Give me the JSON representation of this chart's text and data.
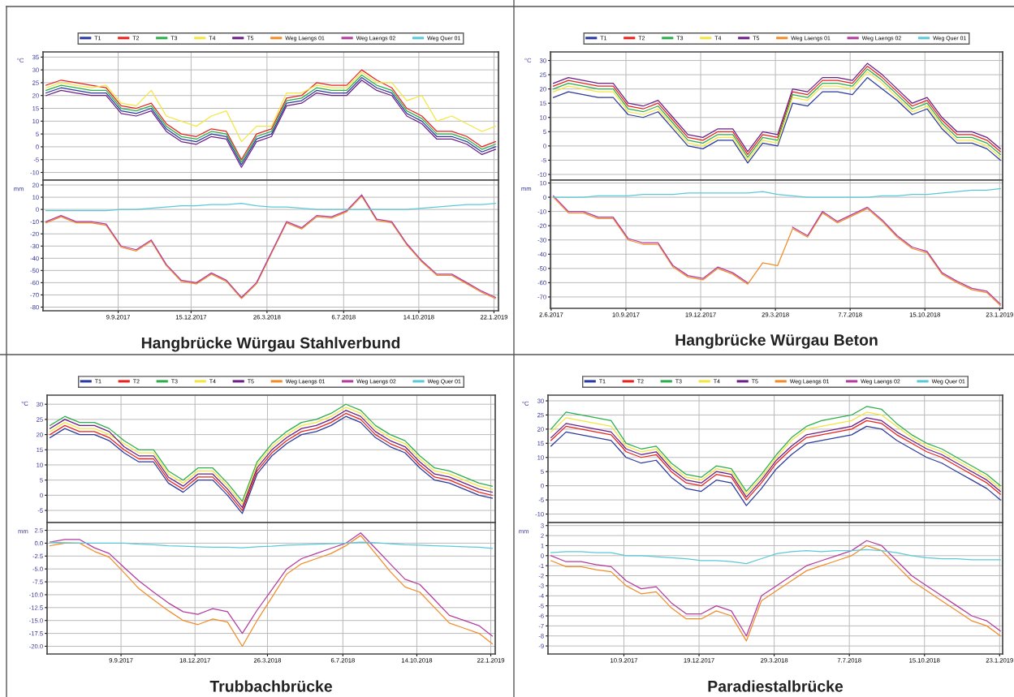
{
  "chart_data": [
    {
      "type": "line",
      "x": [
        "2017-06-05",
        "2017-06-25",
        "2017-07-15",
        "2017-08-04",
        "2017-08-24",
        "2017-09-13",
        "2017-10-03",
        "2017-10-23",
        "2017-11-12",
        "2017-12-02",
        "2017-12-22",
        "2018-01-11",
        "2018-01-31",
        "2018-02-20",
        "2018-03-12",
        "2018-04-01",
        "2018-04-21",
        "2018-05-11",
        "2018-05-31",
        "2018-06-20",
        "2018-07-10",
        "2018-07-30",
        "2018-08-19",
        "2018-09-08",
        "2018-09-28",
        "2018-10-18",
        "2018-11-07",
        "2018-11-27",
        "2018-12-17",
        "2019-01-06",
        "2019-01-24"
      ],
      "xlim": [
        "2017-06-01",
        "2019-01-28"
      ],
      "xticks": [
        {
          "value": "2017-09-09",
          "label": null
        },
        {
          "value": "2017-12-15",
          "label": null
        },
        {
          "value": "2018-03-26",
          "label": null
        },
        {
          "value": "2018-07-06",
          "label": null
        },
        {
          "value": "2018-10-14",
          "label": null
        },
        {
          "value": "2019-01-22",
          "label": null
        }
      ],
      "ylim": [
        -13,
        37
      ],
      "yticks": [
        -10,
        -5,
        0,
        5,
        10,
        15,
        20,
        25,
        30,
        35
      ],
      "ylabel": "°C",
      "grid": true,
      "tick_labels": "y",
      "legend": "top",
      "series": [
        {
          "name": "T1",
          "color": "#2b3a9e",
          "values": [
            21,
            23,
            22,
            21,
            21,
            14,
            13,
            15,
            7,
            3,
            2,
            5,
            4,
            -7,
            3,
            5,
            17,
            18,
            22,
            21,
            21,
            27,
            23,
            21,
            13,
            10,
            4,
            4,
            2,
            -2,
            0
          ]
        },
        {
          "name": "T2",
          "color": "#e8231e",
          "values": [
            24,
            26,
            25,
            24,
            23,
            16,
            15,
            17,
            9,
            5,
            4,
            7,
            6,
            -5,
            5,
            7,
            19,
            20,
            25,
            24,
            24,
            30,
            26,
            23,
            15,
            12,
            6,
            6,
            4,
            0,
            2
          ]
        },
        {
          "name": "T3",
          "color": "#2cae4a",
          "values": [
            22,
            24,
            23,
            22,
            22,
            15,
            14,
            16,
            8,
            4,
            3,
            6,
            5,
            -6,
            4,
            6,
            18,
            19,
            23,
            22,
            22,
            28,
            24,
            22,
            14,
            11,
            5,
            5,
            3,
            -1,
            1
          ]
        },
        {
          "name": "T4",
          "color": "#f3e640",
          "values": [
            23,
            25,
            24,
            23,
            24,
            17,
            16,
            22,
            12,
            10,
            8,
            12,
            14,
            2,
            8,
            8,
            21,
            21,
            24,
            23,
            23,
            29,
            25,
            25,
            18,
            20,
            10,
            12,
            9,
            6,
            8
          ]
        },
        {
          "name": "T5",
          "color": "#6b1f87",
          "values": [
            20,
            22,
            21,
            20,
            20,
            13,
            12,
            14,
            6,
            2,
            1,
            4,
            3,
            -8,
            2,
            4,
            16,
            17,
            21,
            20,
            20,
            26,
            22,
            20,
            12,
            9,
            3,
            3,
            1,
            -3,
            -1
          ]
        }
      ]
    },
    {
      "type": "line",
      "title": "Hangbrücke Würgau Stahlverbund",
      "x": [
        "2017-06-05",
        "2017-06-25",
        "2017-07-15",
        "2017-08-04",
        "2017-08-24",
        "2017-09-13",
        "2017-10-03",
        "2017-10-23",
        "2017-11-12",
        "2017-12-02",
        "2017-12-22",
        "2018-01-11",
        "2018-01-31",
        "2018-02-20",
        "2018-03-12",
        "2018-04-01",
        "2018-04-21",
        "2018-05-11",
        "2018-05-31",
        "2018-06-20",
        "2018-07-10",
        "2018-07-30",
        "2018-08-19",
        "2018-09-08",
        "2018-09-28",
        "2018-10-18",
        "2018-11-07",
        "2018-11-27",
        "2018-12-17",
        "2019-01-06",
        "2019-01-24"
      ],
      "xlim": [
        "2017-06-01",
        "2019-01-28"
      ],
      "xticks": [
        {
          "value": "2017-09-09",
          "label": "9.9.2017"
        },
        {
          "value": "2017-12-15",
          "label": "15.12.2017"
        },
        {
          "value": "2018-03-26",
          "label": "26.3.2018"
        },
        {
          "value": "2018-07-06",
          "label": "6.7.2018"
        },
        {
          "value": "2018-10-14",
          "label": "14.10.2018"
        },
        {
          "value": "2019-01-22",
          "label": "22.1.2019"
        }
      ],
      "ylim": [
        -83,
        24
      ],
      "yticks": [
        -80,
        -70,
        -60,
        -50,
        -40,
        -30,
        -20,
        -10,
        0,
        10,
        20
      ],
      "ylabel": "mm",
      "grid": true,
      "legend": "top",
      "series": [
        {
          "name": "Weg Laengs 01",
          "color": "#f28c28",
          "values": [
            -11,
            -6,
            -11,
            -11,
            -13,
            -31,
            -34,
            -26,
            -46,
            -59,
            -61,
            -53,
            -59,
            -73,
            -61,
            -36,
            -11,
            -16,
            -6,
            -7,
            -2,
            11,
            -9,
            -11,
            -29,
            -43,
            -54,
            -54,
            -61,
            -68,
            -73
          ]
        },
        {
          "name": "Weg Laengs 02",
          "color": "#b43c9f",
          "values": [
            -10,
            -5,
            -10,
            -10,
            -12,
            -30,
            -33,
            -25,
            -45,
            -58,
            -60,
            -52,
            -58,
            -72,
            -60,
            -35,
            -10,
            -15,
            -5,
            -6,
            -1,
            12,
            -8,
            -10,
            -28,
            -42,
            -53,
            -53,
            -60,
            -67,
            -72
          ]
        },
        {
          "name": "Weg Quer 01",
          "color": "#5cc9d9",
          "values": [
            -1,
            -1,
            -1,
            -1,
            -1,
            0,
            0,
            1,
            2,
            3,
            3,
            4,
            4,
            5,
            3,
            2,
            2,
            1,
            0,
            0,
            0,
            0,
            0,
            0,
            0,
            1,
            2,
            3,
            4,
            4,
            5
          ]
        }
      ]
    },
    {
      "type": "line",
      "x": [
        "2017-06-05",
        "2017-06-25",
        "2017-07-15",
        "2017-08-04",
        "2017-08-24",
        "2017-09-13",
        "2017-10-03",
        "2017-10-23",
        "2017-11-12",
        "2017-12-02",
        "2017-12-22",
        "2018-01-11",
        "2018-01-31",
        "2018-02-20",
        "2018-03-12",
        "2018-04-01",
        "2018-04-21",
        "2018-05-11",
        "2018-05-31",
        "2018-06-20",
        "2018-07-10",
        "2018-07-30",
        "2018-08-19",
        "2018-09-08",
        "2018-09-28",
        "2018-10-18",
        "2018-11-07",
        "2018-11-27",
        "2018-12-17",
        "2019-01-06",
        "2019-01-24"
      ],
      "xlim": [
        "2017-06-01",
        "2019-01-27"
      ],
      "xticks": [
        {
          "value": "2017-06-02",
          "label": null
        },
        {
          "value": "2017-09-10",
          "label": null
        },
        {
          "value": "2017-12-19",
          "label": null
        },
        {
          "value": "2018-03-29",
          "label": null
        },
        {
          "value": "2018-07-07",
          "label": null
        },
        {
          "value": "2018-10-15",
          "label": null
        },
        {
          "value": "2019-01-23",
          "label": null
        }
      ],
      "ylim": [
        -12,
        33
      ],
      "yticks": [
        -10,
        -5,
        0,
        5,
        10,
        15,
        20,
        25,
        30
      ],
      "ylabel": "°C",
      "grid": true,
      "tick_labels": "y",
      "legend": "top",
      "series": [
        {
          "name": "T1",
          "color": "#2b3a9e",
          "values": [
            17,
            19,
            18,
            17,
            17,
            11,
            10,
            12,
            6,
            0,
            -1,
            2,
            2,
            -6,
            1,
            0,
            15,
            14,
            19,
            19,
            18,
            24,
            20,
            16,
            11,
            13,
            6,
            1,
            1,
            -1,
            -5
          ]
        },
        {
          "name": "T2",
          "color": "#e8231e",
          "values": [
            21,
            23,
            22,
            21,
            21,
            14,
            13,
            15,
            9,
            3,
            2,
            5,
            5,
            -3,
            4,
            3,
            19,
            18,
            23,
            23,
            22,
            28,
            24,
            19,
            14,
            16,
            9,
            4,
            4,
            2,
            -2
          ]
        },
        {
          "name": "T3",
          "color": "#2cae4a",
          "values": [
            20,
            22,
            21,
            20,
            20,
            13,
            12,
            14,
            8,
            2,
            1,
            4,
            4,
            -4,
            3,
            2,
            18,
            17,
            22,
            22,
            21,
            27,
            23,
            18,
            13,
            15,
            8,
            3,
            3,
            1,
            -3
          ]
        },
        {
          "name": "T4",
          "color": "#f3e640",
          "values": [
            19,
            21,
            20,
            19,
            19,
            12,
            11,
            13,
            7,
            1,
            0,
            3,
            3,
            -5,
            2,
            1,
            17,
            16,
            21,
            21,
            20,
            26,
            22,
            17,
            12,
            14,
            7,
            2,
            2,
            0,
            -4
          ]
        },
        {
          "name": "T5",
          "color": "#6b1f87",
          "values": [
            22,
            24,
            23,
            22,
            22,
            15,
            14,
            16,
            10,
            4,
            3,
            6,
            6,
            -2,
            5,
            4,
            20,
            19,
            24,
            24,
            23,
            29,
            25,
            20,
            15,
            17,
            10,
            5,
            5,
            3,
            -1
          ]
        }
      ]
    },
    {
      "type": "line",
      "title": "Hangbrücke Würgau Beton",
      "x": [
        "2017-06-05",
        "2017-06-25",
        "2017-07-15",
        "2017-08-04",
        "2017-08-24",
        "2017-09-13",
        "2017-10-03",
        "2017-10-23",
        "2017-11-12",
        "2017-12-02",
        "2017-12-22",
        "2018-01-11",
        "2018-01-31",
        "2018-02-20",
        "2018-03-12",
        "2018-04-01",
        "2018-04-21",
        "2018-05-11",
        "2018-05-31",
        "2018-06-20",
        "2018-07-10",
        "2018-07-30",
        "2018-08-19",
        "2018-09-08",
        "2018-09-28",
        "2018-10-18",
        "2018-11-07",
        "2018-11-27",
        "2018-12-17",
        "2019-01-06",
        "2019-01-24"
      ],
      "xlim": [
        "2017-06-01",
        "2019-01-27"
      ],
      "xticks": [
        {
          "value": "2017-06-02",
          "label": "2.6.2017"
        },
        {
          "value": "2017-09-10",
          "label": "10.9.2017"
        },
        {
          "value": "2017-12-19",
          "label": "19.12.2017"
        },
        {
          "value": "2018-03-29",
          "label": "29.3.2018"
        },
        {
          "value": "2018-07-07",
          "label": "7.7.2018"
        },
        {
          "value": "2018-10-15",
          "label": "15.10.2018"
        },
        {
          "value": "2019-01-23",
          "label": "23.1.2019"
        }
      ],
      "ylim": [
        -78,
        12
      ],
      "yticks": [
        -70,
        -60,
        -50,
        -40,
        -30,
        -20,
        -10,
        0,
        10
      ],
      "ylabel": "mm",
      "grid": true,
      "legend": "top",
      "series": [
        {
          "name": "Weg Laengs 01",
          "color": "#f28c28",
          "values": [
            0,
            -11,
            -11,
            -15,
            -15,
            -30,
            -33,
            -33,
            -49,
            -56,
            -58,
            -50,
            -54,
            -61,
            -46,
            -48,
            -22,
            -28,
            -11,
            -18,
            -13,
            -8,
            -17,
            -28,
            -36,
            -39,
            -54,
            -60,
            -65,
            -67,
            -76
          ]
        },
        {
          "name": "Weg Laengs 02",
          "color": "#b43c9f",
          "values": [
            1,
            -10,
            -10,
            -14,
            -14,
            -29,
            -32,
            -32,
            -48,
            -55,
            -57,
            -49,
            -53,
            -60,
            null,
            null,
            -21,
            -27,
            -10,
            -17,
            -12,
            -7,
            -16,
            -27,
            -35,
            -38,
            -53,
            -59,
            -64,
            -66,
            -75
          ]
        },
        {
          "name": "Weg Quer 01",
          "color": "#5cc9d9",
          "values": [
            0,
            0,
            0,
            1,
            1,
            1,
            2,
            2,
            2,
            3,
            3,
            3,
            3,
            3,
            4,
            2,
            1,
            0,
            0,
            0,
            0,
            0,
            1,
            1,
            2,
            2,
            3,
            4,
            5,
            5,
            6
          ]
        }
      ]
    },
    {
      "type": "line",
      "x": [
        "2017-06-05",
        "2017-06-25",
        "2017-07-15",
        "2017-08-04",
        "2017-08-24",
        "2017-09-13",
        "2017-10-03",
        "2017-10-23",
        "2017-11-12",
        "2017-12-02",
        "2017-12-22",
        "2018-01-11",
        "2018-01-31",
        "2018-02-20",
        "2018-03-12",
        "2018-04-01",
        "2018-04-21",
        "2018-05-11",
        "2018-05-31",
        "2018-06-20",
        "2018-07-10",
        "2018-07-30",
        "2018-08-19",
        "2018-09-08",
        "2018-09-28",
        "2018-10-18",
        "2018-11-07",
        "2018-11-27",
        "2018-12-17",
        "2019-01-06",
        "2019-01-24"
      ],
      "xlim": [
        "2017-06-01",
        "2019-01-28"
      ],
      "xticks": [
        {
          "value": "2017-09-09",
          "label": null
        },
        {
          "value": "2017-12-18",
          "label": null
        },
        {
          "value": "2018-03-26",
          "label": null
        },
        {
          "value": "2018-07-06",
          "label": null
        },
        {
          "value": "2018-10-14",
          "label": null
        },
        {
          "value": "2019-01-22",
          "label": null
        }
      ],
      "ylim": [
        -9,
        33
      ],
      "yticks": [
        -5,
        0,
        5,
        10,
        15,
        20,
        25,
        30
      ],
      "ylabel": "°C",
      "grid": true,
      "tick_labels": "y",
      "legend": "top",
      "series": [
        {
          "name": "T1",
          "color": "#2b3a9e",
          "values": [
            19,
            22,
            20,
            20,
            18,
            14,
            11,
            11,
            4,
            1,
            5,
            5,
            0,
            -6,
            7,
            13,
            17,
            20,
            21,
            23,
            26,
            24,
            19,
            16,
            14,
            9,
            5,
            4,
            2,
            0,
            -1
          ]
        },
        {
          "name": "T2",
          "color": "#e8231e",
          "values": [
            20,
            23,
            21,
            21,
            19,
            15,
            12,
            12,
            5,
            2,
            6,
            6,
            1,
            -5,
            8,
            14,
            18,
            21,
            22,
            24,
            27,
            25,
            20,
            17,
            15,
            10,
            6,
            5,
            3,
            1,
            0
          ]
        },
        {
          "name": "T3",
          "color": "#2cae4a",
          "values": [
            23,
            26,
            24,
            24,
            22,
            18,
            15,
            15,
            8,
            5,
            9,
            9,
            4,
            -2,
            11,
            17,
            21,
            24,
            25,
            27,
            30,
            28,
            23,
            20,
            18,
            13,
            9,
            8,
            6,
            4,
            3
          ]
        },
        {
          "name": "T4",
          "color": "#f3e640",
          "values": [
            21,
            24,
            22,
            22,
            20,
            17,
            14,
            14,
            7,
            4,
            8,
            8,
            3,
            -3,
            10,
            16,
            20,
            23,
            24,
            26,
            29,
            27,
            22,
            19,
            17,
            12,
            8,
            7,
            5,
            3,
            2
          ]
        },
        {
          "name": "T5",
          "color": "#6b1f87",
          "values": [
            22,
            25,
            23,
            23,
            21,
            16,
            13,
            13,
            6,
            3,
            7,
            7,
            2,
            -4,
            9,
            15,
            19,
            22,
            23,
            25,
            28,
            26,
            21,
            18,
            16,
            11,
            7,
            6,
            4,
            2,
            1
          ]
        }
      ]
    },
    {
      "type": "line",
      "title": "Trubbachbrücke",
      "x": [
        "2017-06-05",
        "2017-06-25",
        "2017-07-15",
        "2017-08-04",
        "2017-08-24",
        "2017-09-13",
        "2017-10-03",
        "2017-10-23",
        "2017-11-12",
        "2017-12-02",
        "2017-12-22",
        "2018-01-11",
        "2018-01-31",
        "2018-02-20",
        "2018-03-12",
        "2018-04-01",
        "2018-04-21",
        "2018-05-11",
        "2018-05-31",
        "2018-06-20",
        "2018-07-10",
        "2018-07-30",
        "2018-08-19",
        "2018-09-08",
        "2018-09-28",
        "2018-10-18",
        "2018-11-07",
        "2018-11-27",
        "2018-12-17",
        "2019-01-06",
        "2019-01-24"
      ],
      "xlim": [
        "2017-06-01",
        "2019-01-28"
      ],
      "xticks": [
        {
          "value": "2017-09-09",
          "label": "9.9.2017"
        },
        {
          "value": "2017-12-18",
          "label": "18.12.2017"
        },
        {
          "value": "2018-03-26",
          "label": "26.3.2018"
        },
        {
          "value": "2018-07-06",
          "label": "6.7.2018"
        },
        {
          "value": "2018-10-14",
          "label": "14.10.2018"
        },
        {
          "value": "2019-01-22",
          "label": "22.1.2019"
        }
      ],
      "ylim": [
        -21.5,
        4
      ],
      "yticks": [
        {
          "value": -20,
          "label": "-20.0"
        },
        {
          "value": -17.5,
          "label": "-17.5"
        },
        {
          "value": -15,
          "label": "-15.0"
        },
        {
          "value": -12.5,
          "label": "-12.5"
        },
        {
          "value": -10,
          "label": "-10.0"
        },
        {
          "value": -7.5,
          "label": "-7.5"
        },
        {
          "value": -5,
          "label": "-5.0"
        },
        {
          "value": -2.5,
          "label": "-2.5"
        },
        {
          "value": 0,
          "label": "0.0"
        },
        {
          "value": 2.5,
          "label": "2.5"
        }
      ],
      "ylabel": "mm",
      "grid": true,
      "legend": "top",
      "series": [
        {
          "name": "Weg Laengs 01",
          "color": "#f28c28",
          "values": [
            -0.5,
            0,
            0,
            -1.6,
            -2.7,
            -5.7,
            -8.8,
            -11,
            -13.1,
            -15,
            -15.8,
            -14.7,
            -15.3,
            -20,
            -15,
            -10.5,
            -6,
            -4,
            -3,
            -2,
            -0.5,
            1.5,
            -2,
            -5.5,
            -8.5,
            -9.5,
            -12.5,
            -15.5,
            -16.5,
            -17.5,
            -19.5
          ]
        },
        {
          "name": "Weg Laengs 02",
          "color": "#b43c9f",
          "values": [
            0.2,
            0.7,
            0.7,
            -0.9,
            -2,
            -4.7,
            -7.3,
            -9.5,
            -11.6,
            -13.3,
            -13.8,
            -12.7,
            -13.3,
            -17.5,
            -13,
            -9,
            -5,
            -3,
            -2,
            -1,
            0,
            2,
            -1,
            -4,
            -7,
            -8,
            -11,
            -14,
            -15,
            -16,
            -18
          ]
        },
        {
          "name": "Weg Quer 01",
          "color": "#5cc9d9",
          "values": [
            0.2,
            0.1,
            0,
            0,
            0,
            0,
            -0.2,
            -0.3,
            -0.5,
            -0.6,
            -0.7,
            -0.8,
            -0.8,
            -0.9,
            -0.7,
            -0.6,
            -0.4,
            -0.3,
            -0.2,
            -0.1,
            0,
            0.2,
            0.1,
            -0.1,
            -0.3,
            -0.4,
            -0.5,
            -0.6,
            -0.7,
            -0.8,
            -1
          ]
        }
      ]
    },
    {
      "type": "line",
      "x": [
        "2017-06-05",
        "2017-06-25",
        "2017-07-15",
        "2017-08-04",
        "2017-08-24",
        "2017-09-13",
        "2017-10-03",
        "2017-10-23",
        "2017-11-12",
        "2017-12-02",
        "2017-12-22",
        "2018-01-11",
        "2018-01-31",
        "2018-02-20",
        "2018-03-12",
        "2018-04-01",
        "2018-04-21",
        "2018-05-11",
        "2018-05-31",
        "2018-06-20",
        "2018-07-10",
        "2018-07-30",
        "2018-08-19",
        "2018-09-08",
        "2018-09-28",
        "2018-10-18",
        "2018-11-07",
        "2018-11-27",
        "2018-12-17",
        "2019-01-06",
        "2019-01-24"
      ],
      "xlim": [
        "2017-06-01",
        "2019-01-27"
      ],
      "xticks": [
        {
          "value": "2017-09-10",
          "label": null
        },
        {
          "value": "2017-12-19",
          "label": null
        },
        {
          "value": "2018-03-29",
          "label": null
        },
        {
          "value": "2018-07-07",
          "label": null
        },
        {
          "value": "2018-10-15",
          "label": null
        },
        {
          "value": "2019-01-23",
          "label": null
        }
      ],
      "ylim": [
        -13,
        32
      ],
      "yticks": [
        -10,
        -5,
        0,
        5,
        10,
        15,
        20,
        25,
        30
      ],
      "ylabel": "°C",
      "grid": true,
      "tick_labels": "y",
      "legend": "top",
      "series": [
        {
          "name": "T1",
          "color": "#2b3a9e",
          "values": [
            14,
            19,
            18,
            17,
            16,
            10,
            8,
            9,
            3,
            -1,
            -2,
            2,
            1,
            -7,
            -1,
            6,
            11,
            15,
            16,
            17,
            18,
            21,
            20,
            16,
            13,
            10,
            8,
            5,
            2,
            -1,
            -5
          ]
        },
        {
          "name": "T2",
          "color": "#e8231e",
          "values": [
            16,
            21,
            20,
            19,
            18,
            12,
            10,
            11,
            5,
            1,
            0,
            4,
            3,
            -5,
            1,
            8,
            13,
            17,
            18,
            19,
            20,
            23,
            22,
            18,
            15,
            12,
            10,
            7,
            4,
            1,
            -3
          ]
        },
        {
          "name": "T3",
          "color": "#2cae4a",
          "values": [
            20,
            26,
            25,
            24,
            23,
            15,
            13,
            14,
            8,
            4,
            3,
            7,
            6,
            -2,
            4,
            11,
            17,
            21,
            23,
            24,
            25,
            28,
            27,
            22,
            18,
            15,
            13,
            10,
            7,
            4,
            0
          ]
        },
        {
          "name": "T4",
          "color": "#f3e640",
          "values": [
            19,
            24,
            23,
            22,
            21,
            14,
            12,
            13,
            7,
            3,
            2,
            6,
            5,
            -3,
            3,
            10,
            16,
            20,
            21,
            22,
            23,
            26,
            25,
            21,
            17,
            14,
            12,
            9,
            6,
            3,
            -1
          ]
        },
        {
          "name": "T5",
          "color": "#6b1f87",
          "values": [
            17,
            22,
            21,
            20,
            19,
            13,
            11,
            12,
            6,
            2,
            1,
            5,
            4,
            -4,
            2,
            9,
            14,
            18,
            19,
            20,
            21,
            24,
            23,
            19,
            16,
            13,
            11,
            8,
            5,
            2,
            -2
          ]
        }
      ]
    },
    {
      "type": "line",
      "title": "Paradiestalbrücke",
      "x": [
        "2017-06-05",
        "2017-06-25",
        "2017-07-15",
        "2017-08-04",
        "2017-08-24",
        "2017-09-13",
        "2017-10-03",
        "2017-10-23",
        "2017-11-12",
        "2017-12-02",
        "2017-12-22",
        "2018-01-11",
        "2018-01-31",
        "2018-02-20",
        "2018-03-12",
        "2018-04-01",
        "2018-04-21",
        "2018-05-11",
        "2018-05-31",
        "2018-06-20",
        "2018-07-10",
        "2018-07-30",
        "2018-08-19",
        "2018-09-08",
        "2018-09-28",
        "2018-10-18",
        "2018-11-07",
        "2018-11-27",
        "2018-12-17",
        "2019-01-06",
        "2019-01-24"
      ],
      "xlim": [
        "2017-06-01",
        "2019-01-27"
      ],
      "xticks": [
        {
          "value": "2017-09-10",
          "label": "10.9.2017"
        },
        {
          "value": "2017-12-19",
          "label": "19.12.2017"
        },
        {
          "value": "2018-03-29",
          "label": "29.3.2018"
        },
        {
          "value": "2018-07-07",
          "label": "7.7.2018"
        },
        {
          "value": "2018-10-15",
          "label": "15.10.2018"
        },
        {
          "value": "2019-01-23",
          "label": "23.1.2019"
        }
      ],
      "ylim": [
        -9.8,
        3.3
      ],
      "yticks": [
        -9,
        -8,
        -7,
        -6,
        -5,
        -4,
        -3,
        -2,
        -1,
        0,
        1,
        2,
        3
      ],
      "ylabel": "mm",
      "grid": true,
      "legend": "top",
      "series": [
        {
          "name": "Weg Laengs 01",
          "color": "#f28c28",
          "values": [
            -0.5,
            -1.1,
            -1.1,
            -1.4,
            -1.6,
            -3,
            -3.8,
            -3.6,
            -5.2,
            -6.3,
            -6.3,
            -5.5,
            -6,
            -8.5,
            -4.5,
            -3.5,
            -2.5,
            -1.5,
            -1,
            -0.5,
            0,
            1,
            0.5,
            -1,
            -2.5,
            -3.5,
            -4.5,
            -5.5,
            -6.5,
            -7,
            -8
          ]
        },
        {
          "name": "Weg Laengs 02",
          "color": "#b43c9f",
          "values": [
            0,
            -0.6,
            -0.6,
            -0.9,
            -1.1,
            -2.5,
            -3.3,
            -3.1,
            -4.7,
            -5.8,
            -5.8,
            -5,
            -5.5,
            -8,
            -4,
            -3,
            -2,
            -1,
            -0.5,
            0,
            0.5,
            1.5,
            1,
            -0.5,
            -2,
            -3,
            -4,
            -5,
            -6,
            -6.5,
            -7.5
          ]
        },
        {
          "name": "Weg Quer 01",
          "color": "#5cc9d9",
          "values": [
            0.3,
            0.4,
            0.4,
            0.3,
            0.3,
            0,
            0,
            -0.1,
            -0.2,
            -0.3,
            -0.5,
            -0.5,
            -0.6,
            -0.8,
            -0.3,
            0.2,
            0.4,
            0.5,
            0.4,
            0.5,
            0.5,
            0.6,
            0.5,
            0.3,
            0,
            -0.2,
            -0.3,
            -0.3,
            -0.4,
            -0.4,
            -0.4
          ]
        }
      ]
    }
  ]
}
